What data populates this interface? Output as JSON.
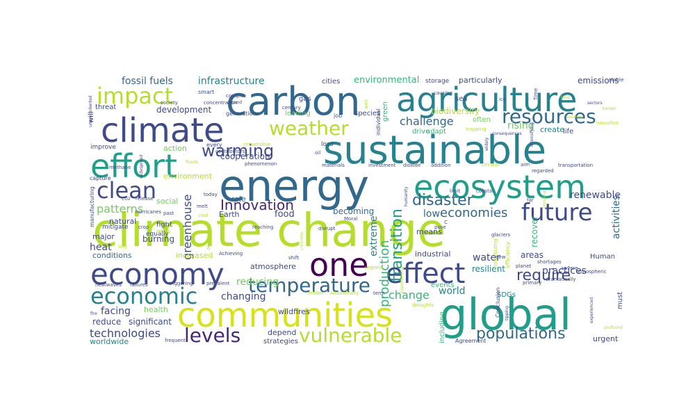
{
  "word_cloud": {
    "palette": [
      "#440154",
      "#482677",
      "#3e4a89",
      "#31688e",
      "#26828e",
      "#1f9e89",
      "#35b779",
      "#6ece58",
      "#b5de2b",
      "#d8e219"
    ],
    "words": [
      {
        "text": "climate change",
        "color": "#b5de2b"
      },
      {
        "text": "energy",
        "color": "#31688e"
      },
      {
        "text": "sustainable",
        "color": "#26828e"
      },
      {
        "text": "agriculture",
        "color": "#26828e"
      },
      {
        "text": "carbon",
        "color": "#31688e"
      },
      {
        "text": "global",
        "color": "#1f9e89"
      },
      {
        "text": "climate",
        "color": "#3e4a89"
      },
      {
        "text": "communities",
        "color": "#d8e219"
      },
      {
        "text": "effort",
        "color": "#1f9e89"
      },
      {
        "text": "ecosystem",
        "color": "#1f9e89"
      },
      {
        "text": "economy",
        "color": "#3e4a89"
      },
      {
        "text": "one",
        "color": "#440154"
      },
      {
        "text": "effect",
        "color": "#3e4a89"
      },
      {
        "text": "impact",
        "color": "#b5de2b"
      },
      {
        "text": "economic",
        "color": "#26828e"
      },
      {
        "text": "future",
        "color": "#3e4a89"
      },
      {
        "text": "clean",
        "color": "#3e4a89"
      },
      {
        "text": "resources",
        "color": "#31688e"
      },
      {
        "text": "weather",
        "color": "#b5de2b"
      },
      {
        "text": "vulnerable",
        "color": "#b5de2b"
      },
      {
        "text": "temperature",
        "color": "#31688e"
      },
      {
        "text": "levels",
        "color": "#482677"
      },
      {
        "text": "warming",
        "color": "#3e4a89"
      },
      {
        "text": "populations",
        "color": "#31688e"
      },
      {
        "text": "disaster",
        "color": "#31688e"
      },
      {
        "text": "require",
        "color": "#3e4a89"
      },
      {
        "text": "transition",
        "color": "#1f9e89"
      },
      {
        "text": "Innovation",
        "color": "#482677"
      },
      {
        "text": "production",
        "color": "#35b779"
      },
      {
        "text": "economies",
        "color": "#31688e"
      },
      {
        "text": "patterns",
        "color": "#6ece58"
      },
      {
        "text": "technologies",
        "color": "#3e4a89"
      },
      {
        "text": "greenhouse",
        "color": "#3e4a89"
      },
      {
        "text": "fossil fuels",
        "color": "#31688e"
      },
      {
        "text": "infrastructure",
        "color": "#26828e"
      },
      {
        "text": "challenge",
        "color": "#31688e"
      },
      {
        "text": "rising",
        "color": "#6ece58"
      },
      {
        "text": "change",
        "color": "#35b779"
      },
      {
        "text": "extreme",
        "color": "#26828e"
      },
      {
        "text": "activities",
        "color": "#31688e"
      },
      {
        "text": "facing",
        "color": "#3e4a89"
      },
      {
        "text": "heat",
        "color": "#3e4a89"
      },
      {
        "text": "world",
        "color": "#26828e"
      },
      {
        "text": "practices",
        "color": "#3e4a89"
      },
      {
        "text": "renewable",
        "color": "#3e4a89"
      },
      {
        "text": "low",
        "color": "#31688e"
      },
      {
        "text": "water",
        "color": "#3e4a89"
      },
      {
        "text": "reducing",
        "color": "#6ece58"
      },
      {
        "text": "changing",
        "color": "#3e4a89"
      },
      {
        "text": "biodiversity",
        "color": "#b5de2b"
      },
      {
        "text": "environmental",
        "color": "#35b779"
      },
      {
        "text": "development",
        "color": "#3e4a89"
      },
      {
        "text": "food",
        "color": "#3e4a89"
      },
      {
        "text": "cooperation",
        "color": "#3e4a89"
      },
      {
        "text": "becoming",
        "color": "#31688e"
      },
      {
        "text": "resilient",
        "color": "#26828e"
      },
      {
        "text": "emissions",
        "color": "#3e4a89"
      },
      {
        "text": "particularly",
        "color": "#3e4a89"
      },
      {
        "text": "create",
        "color": "#26828e"
      },
      {
        "text": "SDGs",
        "color": "#26828e"
      },
      {
        "text": "reduce",
        "color": "#3e4a89"
      },
      {
        "text": "significant",
        "color": "#3e4a89"
      },
      {
        "text": "worldwide",
        "color": "#26828e"
      },
      {
        "text": "urgent",
        "color": "#3e4a89"
      },
      {
        "text": "areas",
        "color": "#3e4a89"
      },
      {
        "text": "recover",
        "color": "#35b779"
      },
      {
        "text": "Human",
        "color": "#3e4a89"
      },
      {
        "text": "conditions",
        "color": "#31688e"
      },
      {
        "text": "major",
        "color": "#3e4a89"
      },
      {
        "text": "burning",
        "color": "#3e4a89"
      },
      {
        "text": "natural",
        "color": "#3e4a89"
      },
      {
        "text": "fight",
        "color": "#3e4a89"
      },
      {
        "text": "social",
        "color": "#6ece58"
      },
      {
        "text": "action",
        "color": "#6ece58"
      },
      {
        "text": "environment",
        "color": "#b5de2b"
      },
      {
        "text": "role",
        "color": "#31688e"
      },
      {
        "text": "Earth",
        "color": "#3e4a89"
      },
      {
        "text": "increased",
        "color": "#b5de2b"
      },
      {
        "text": "atmosphere",
        "color": "#3e4a89"
      },
      {
        "text": "wildfires",
        "color": "#3e4a89"
      },
      {
        "text": "depend",
        "color": "#3e4a89"
      },
      {
        "text": "strategies",
        "color": "#3e4a89"
      },
      {
        "text": "health",
        "color": "#6ece58"
      },
      {
        "text": "equally",
        "color": "#3e4a89"
      },
      {
        "text": "industrial",
        "color": "#3e4a89"
      },
      {
        "text": "means",
        "color": "#3e4a89"
      },
      {
        "text": "events",
        "color": "#35b779"
      },
      {
        "text": "including",
        "color": "#35b779"
      },
      {
        "text": "Conclusion",
        "color": "#3e4a89"
      },
      {
        "text": "must",
        "color": "#3e4a89"
      },
      {
        "text": "adapt",
        "color": "#35b779"
      },
      {
        "text": "drive",
        "color": "#35b779"
      },
      {
        "text": "often",
        "color": "#6ece58"
      },
      {
        "text": "life",
        "color": "#3e4a89"
      },
      {
        "text": "threat",
        "color": "#3e4a89"
      },
      {
        "text": "will",
        "color": "#3e4a89"
      },
      {
        "text": "gas",
        "color": "#3e4a89"
      },
      {
        "text": "sea",
        "color": "#3e4a89"
      },
      {
        "text": "cities",
        "color": "#3e4a89"
      },
      {
        "text": "storage",
        "color": "#3e4a89"
      },
      {
        "text": "leading",
        "color": "#6ece58"
      },
      {
        "text": "species",
        "color": "#3e4a89"
      },
      {
        "text": "green",
        "color": "#35b779"
      },
      {
        "text": "generations",
        "color": "#3e4a89"
      },
      {
        "text": "smart",
        "color": "#3e4a89"
      },
      {
        "text": "loss",
        "color": "#3e4a89"
      },
      {
        "text": "job",
        "color": "#3e4a89"
      },
      {
        "text": "individual",
        "color": "#3e4a89"
      },
      {
        "text": "every",
        "color": "#3e4a89"
      },
      {
        "text": "improve",
        "color": "#3e4a89"
      },
      {
        "text": "capture",
        "color": "#3e4a89"
      },
      {
        "text": "manufacturing",
        "color": "#3e4a89"
      },
      {
        "text": "mitigate",
        "color": "#3e4a89"
      },
      {
        "text": "hurricanes",
        "color": "#3e4a89"
      },
      {
        "text": "release",
        "color": "#3e4a89"
      },
      {
        "text": "CO2",
        "color": "#3e4a89"
      },
      {
        "text": "past",
        "color": "#3e4a89"
      },
      {
        "text": "crop",
        "color": "#3e4a89"
      },
      {
        "text": "refers",
        "color": "#b5de2b"
      },
      {
        "text": "melt",
        "color": "#3e4a89"
      },
      {
        "text": "today",
        "color": "#3e4a89"
      },
      {
        "text": "coal",
        "color": "#b5de2b"
      },
      {
        "text": "phenomenon",
        "color": "#3e4a89"
      },
      {
        "text": "Moral",
        "color": "#3e4a89"
      },
      {
        "text": "materials",
        "color": "#3e4a89"
      },
      {
        "text": "investment",
        "color": "#3e4a89"
      },
      {
        "text": "dioxide",
        "color": "#3e4a89"
      },
      {
        "text": "addition",
        "color": "#3e4a89"
      },
      {
        "text": "circular",
        "color": "#b5de2b"
      },
      {
        "text": "limit",
        "color": "#3e4a89"
      },
      {
        "text": "coastal",
        "color": "#3e4a89"
      },
      {
        "text": "pose",
        "color": "#3e4a89"
      },
      {
        "text": "glaciers",
        "color": "#3e4a89"
      },
      {
        "text": "planet",
        "color": "#3e4a89"
      },
      {
        "text": "primary",
        "color": "#3e4a89"
      },
      {
        "text": "severe",
        "color": "#3e4a89"
      },
      {
        "text": "shortages",
        "color": "#3e4a89"
      },
      {
        "text": "rate",
        "color": "#3e4a89"
      },
      {
        "text": "Agreement",
        "color": "#3e4a89"
      },
      {
        "text": "Achieving",
        "color": "#3e4a89"
      },
      {
        "text": "prevalent",
        "color": "#3e4a89"
      },
      {
        "text": "triggering",
        "color": "#3e4a89"
      },
      {
        "text": "failures",
        "color": "#3e4a89"
      },
      {
        "text": "heatwaves",
        "color": "#3e4a89"
      },
      {
        "text": "shift",
        "color": "#3e4a89"
      },
      {
        "text": "milder",
        "color": "#b5de2b"
      },
      {
        "text": "Additionally",
        "color": "#b5de2b"
      },
      {
        "text": "term",
        "color": "#3e4a89"
      },
      {
        "text": "disrupt",
        "color": "#3e4a89"
      },
      {
        "text": "reaching",
        "color": "#3e4a89"
      },
      {
        "text": "contributors",
        "color": "#3e4a89"
      },
      {
        "text": "irreversible",
        "color": "#b5de2b"
      },
      {
        "text": "oil",
        "color": "#3e4a89"
      },
      {
        "text": "methane",
        "color": "#3e4a89"
      },
      {
        "text": "widespread",
        "color": "#3e4a89"
      },
      {
        "text": "concentration",
        "color": "#3e4a89"
      },
      {
        "text": "complex",
        "color": "#3e4a89"
      },
      {
        "text": "around",
        "color": "#3e4a89"
      },
      {
        "text": "society",
        "color": "#3e4a89"
      },
      {
        "text": "century",
        "color": "#3e4a89"
      },
      {
        "text": "unprecedented",
        "color": "#3e4a89"
      },
      {
        "text": "generated",
        "color": "#3e4a89"
      },
      {
        "text": "frequent",
        "color": "#3e4a89"
      },
      {
        "text": "causing",
        "color": "#3e4a89"
      },
      {
        "text": "ice",
        "color": "#3e4a89"
      },
      {
        "text": "new",
        "color": "#3e4a89"
      },
      {
        "text": "far",
        "color": "#3e4a89"
      },
      {
        "text": "regarded",
        "color": "#3e4a89"
      },
      {
        "text": "transportation",
        "color": "#3e4a89"
      },
      {
        "text": "consequences",
        "color": "#3e4a89"
      },
      {
        "text": "intensifying",
        "color": "#3e4a89"
      },
      {
        "text": "trapping",
        "color": "#b5de2b"
      },
      {
        "text": "widely",
        "color": "#3e4a89"
      },
      {
        "text": "atmospheric",
        "color": "#3e4a89"
      },
      {
        "text": "dramatically",
        "color": "#3e4a89"
      },
      {
        "text": "experienced",
        "color": "#3e4a89"
      },
      {
        "text": "stable",
        "color": "#3e4a89"
      },
      {
        "text": "Time",
        "color": "#3e4a89"
      },
      {
        "text": "efficiency",
        "color": "#b5de2b"
      },
      {
        "text": "contributing",
        "color": "#b5de2b"
      },
      {
        "text": "experiencing",
        "color": "#b5de2b"
      },
      {
        "text": "droughts",
        "color": "#b5de2b"
      },
      {
        "text": "tipping",
        "color": "#3e4a89"
      },
      {
        "text": "floods",
        "color": "#b5de2b"
      },
      {
        "text": "long",
        "color": "#b5de2b"
      },
      {
        "text": "regions",
        "color": "#b5de2b"
      },
      {
        "text": "aim",
        "color": "#3e4a89"
      },
      {
        "text": "well",
        "color": "#b5de2b"
      },
      {
        "text": "fire",
        "color": "#3e4a89"
      },
      {
        "text": "humanity",
        "color": "#3e4a89"
      },
      {
        "text": "dependence",
        "color": "#b5de2b"
      },
      {
        "text": "concrete",
        "color": "#b5de2b"
      },
      {
        "text": "pressing",
        "color": "#b5de2b"
      },
      {
        "text": "sectors",
        "color": "#3e4a89"
      },
      {
        "text": "thus",
        "color": "#b5de2b"
      },
      {
        "text": "sources",
        "color": "#b5de2b"
      },
      {
        "text": "intensified",
        "color": "#b5de2b"
      },
      {
        "text": "known",
        "color": "#b5de2b"
      },
      {
        "text": "profound",
        "color": "#b5de2b"
      },
      {
        "text": "C",
        "color": "#3e4a89"
      }
    ]
  }
}
